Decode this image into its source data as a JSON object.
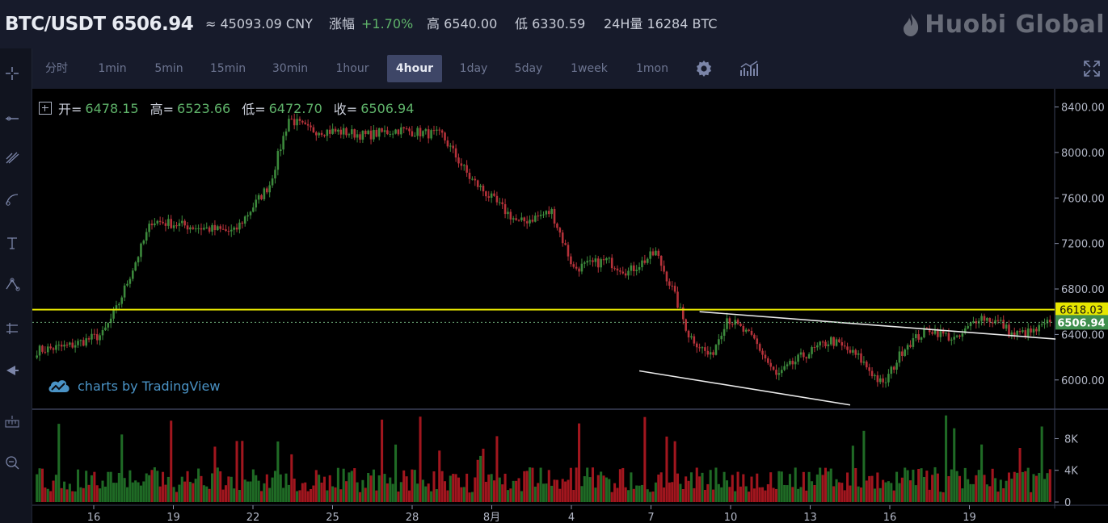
{
  "header": {
    "pair": "BTC/USDT",
    "price": "6506.94",
    "cny": "≈ 45093.09 CNY",
    "change_label": "涨幅",
    "change_value": "+1.70%",
    "high": "高 6540.00",
    "low": "低 6330.59",
    "volume_24h": "24H量 16284 BTC",
    "brand": "Huobi Global"
  },
  "toolbar": {
    "intervals": [
      "分时",
      "1min",
      "5min",
      "15min",
      "30min",
      "1hour",
      "4hour",
      "1day",
      "5day",
      "1week",
      "1mon"
    ],
    "active_interval": "4hour",
    "icons": [
      "gear-icon",
      "indicators-icon",
      "fullscreen-icon"
    ]
  },
  "left_tools": [
    "crosshair-icon",
    "trend-line-icon",
    "brush-icon",
    "curve-icon",
    "text-icon",
    "pattern-icon",
    "measure-icon",
    "arrow-icon",
    "ruler-icon",
    "zoom-icon"
  ],
  "legend": {
    "open_label": "开=",
    "open": "6478.15",
    "high_label": "高=",
    "high": "6523.66",
    "low_label": "低=",
    "low": "6472.70",
    "close_label": "收=",
    "close": "6506.94"
  },
  "watermark": "charts by TradingView",
  "colors": {
    "up": "#3c8a3c",
    "down": "#b5323a",
    "up_vol": "#1f6a25",
    "down_vol": "#a1161e",
    "horizontal_line": "#e6e600",
    "current_price_tag": "#3f8f4d",
    "accent": "#3e4667"
  },
  "chart_data": {
    "type": "candlestick",
    "price_axis": {
      "ticks": [
        6000,
        6400,
        6800,
        7200,
        7600,
        8000,
        8400
      ],
      "labels": [
        "6000.00",
        "6400.00",
        "6800.00",
        "7200.00",
        "7600.00",
        "8000.00",
        "8400.00"
      ],
      "range": [
        5750,
        8560
      ]
    },
    "volume_axis": {
      "ticks": [
        0,
        4000,
        8000
      ],
      "labels": [
        "0",
        "4K",
        "8K"
      ],
      "range": [
        0,
        11000
      ]
    },
    "date_labels": [
      "16",
      "19",
      "22",
      "25",
      "28",
      "8月",
      "4",
      "7",
      "10",
      "13",
      "16",
      "19"
    ],
    "horizontal_line": {
      "value": 6618.03,
      "label": "6618.03"
    },
    "current_price": {
      "value": 6506.94,
      "label": "6506.94"
    },
    "key_closes": [
      [
        0,
        6260
      ],
      [
        12,
        6300
      ],
      [
        24,
        6400
      ],
      [
        29,
        6620
      ],
      [
        42,
        7400
      ],
      [
        56,
        7350
      ],
      [
        72,
        7300
      ],
      [
        85,
        7720
      ],
      [
        92,
        8300
      ],
      [
        99,
        8200
      ],
      [
        112,
        8180
      ],
      [
        120,
        8150
      ],
      [
        132,
        8200
      ],
      [
        148,
        8150
      ],
      [
        158,
        7780
      ],
      [
        168,
        7550
      ],
      [
        176,
        7380
      ],
      [
        188,
        7480
      ],
      [
        196,
        6980
      ],
      [
        208,
        7050
      ],
      [
        216,
        6950
      ],
      [
        226,
        7120
      ],
      [
        232,
        6800
      ],
      [
        238,
        6400
      ],
      [
        246,
        6200
      ],
      [
        252,
        6550
      ],
      [
        262,
        6350
      ],
      [
        270,
        6030
      ],
      [
        279,
        6200
      ],
      [
        290,
        6350
      ],
      [
        300,
        6200
      ],
      [
        309,
        5950
      ],
      [
        317,
        6300
      ],
      [
        326,
        6450
      ],
      [
        336,
        6350
      ],
      [
        344,
        6560
      ],
      [
        352,
        6500
      ],
      [
        356,
        6400
      ],
      [
        364,
        6420
      ],
      [
        370,
        6506.94
      ]
    ],
    "trend_lines": [
      {
        "from": {
          "index": 242,
          "value": 6600
        },
        "to": {
          "index": 372,
          "value": 6360
        }
      },
      {
        "from": {
          "index": 220,
          "value": 6080
        },
        "to": {
          "index": 297,
          "value": 5780
        }
      }
    ]
  }
}
